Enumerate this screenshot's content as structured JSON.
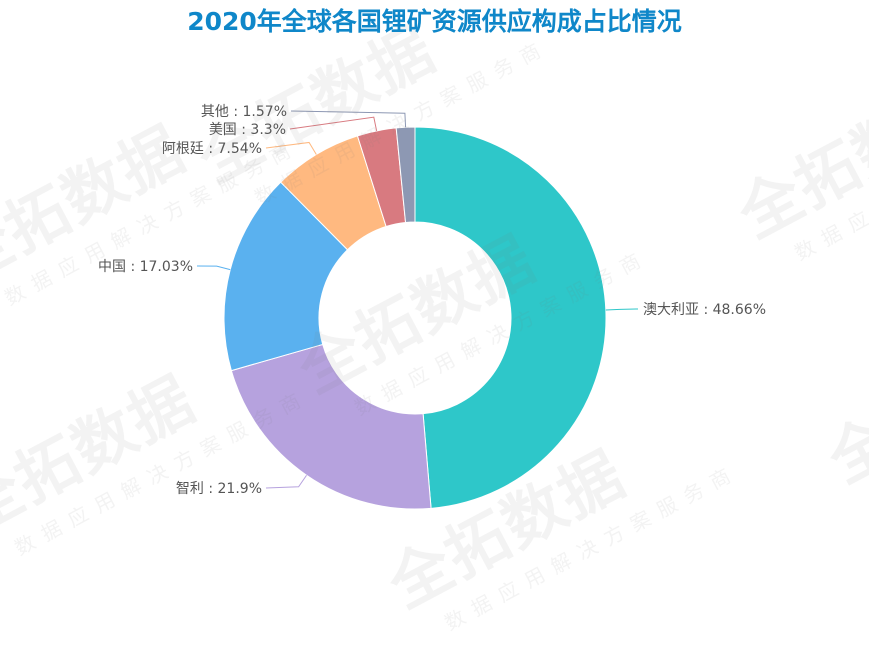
{
  "title": "2020年全球各国锂矿资源供应构成占比情况",
  "watermark": {
    "main": "全拓数据",
    "sub": "数据应用解决方案服务商"
  },
  "chart_data": {
    "type": "pie",
    "variant": "donut",
    "title": "2020年全球各国锂矿资源供应构成占比情况",
    "unit": "%",
    "categories": [
      "澳大利亚",
      "智利",
      "中国",
      "阿根廷",
      "美国",
      "其他"
    ],
    "values": [
      48.66,
      21.9,
      17.03,
      7.54,
      3.3,
      1.57
    ],
    "colors": [
      "#2ec7c9",
      "#b6a2de",
      "#5ab1ef",
      "#ffb980",
      "#d87a80",
      "#8d98b3"
    ],
    "labels": [
      "澳大利亚 : 48.66%",
      "智利 : 21.9%",
      "中国 : 17.03%",
      "阿根廷 : 7.54%",
      "美国 : 3.3%",
      "其他 : 1.57%"
    ],
    "start_angle": "12 o'clock, clockwise",
    "legend": "none (labels with leader lines)"
  }
}
